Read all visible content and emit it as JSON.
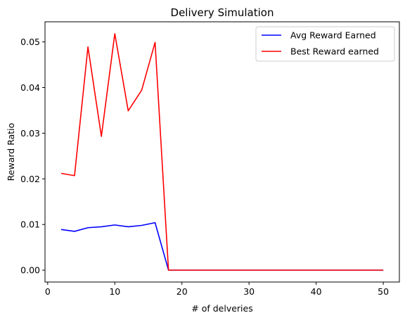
{
  "chart_data": {
    "type": "line",
    "title": "Delivery Simulation",
    "xlabel": "# of delveries",
    "ylabel": "Reward Ratio",
    "xlim": [
      -0.4,
      52.4
    ],
    "ylim": [
      -0.0026,
      0.0544
    ],
    "xticks": [
      0,
      10,
      20,
      30,
      40,
      50
    ],
    "xtick_labels": [
      "0",
      "10",
      "20",
      "30",
      "40",
      "50"
    ],
    "yticks": [
      0.0,
      0.01,
      0.02,
      0.03,
      0.04,
      0.05
    ],
    "ytick_labels": [
      "0.00",
      "0.01",
      "0.02",
      "0.03",
      "0.04",
      "0.05"
    ],
    "grid": false,
    "legend": "top-right",
    "x": [
      2,
      4,
      6,
      8,
      10,
      12,
      14,
      16,
      18,
      20,
      22,
      24,
      26,
      28,
      30,
      32,
      34,
      36,
      38,
      40,
      42,
      44,
      46,
      48,
      50
    ],
    "series": [
      {
        "name": "Avg Reward Earned",
        "color": "#0000ff",
        "values": [
          0.0089,
          0.0085,
          0.0093,
          0.0095,
          0.0099,
          0.0095,
          0.0098,
          0.0104,
          0,
          0,
          0,
          0,
          0,
          0,
          0,
          0,
          0,
          0,
          0,
          0,
          0,
          0,
          0,
          0,
          0
        ]
      },
      {
        "name": "Best Reward earned",
        "color": "#ff0000",
        "values": [
          0.0212,
          0.0207,
          0.0489,
          0.0293,
          0.0518,
          0.0349,
          0.0394,
          0.0499,
          0,
          0,
          0,
          0,
          0,
          0,
          0,
          0,
          0,
          0,
          0,
          0,
          0,
          0,
          0,
          0,
          0
        ]
      }
    ]
  }
}
